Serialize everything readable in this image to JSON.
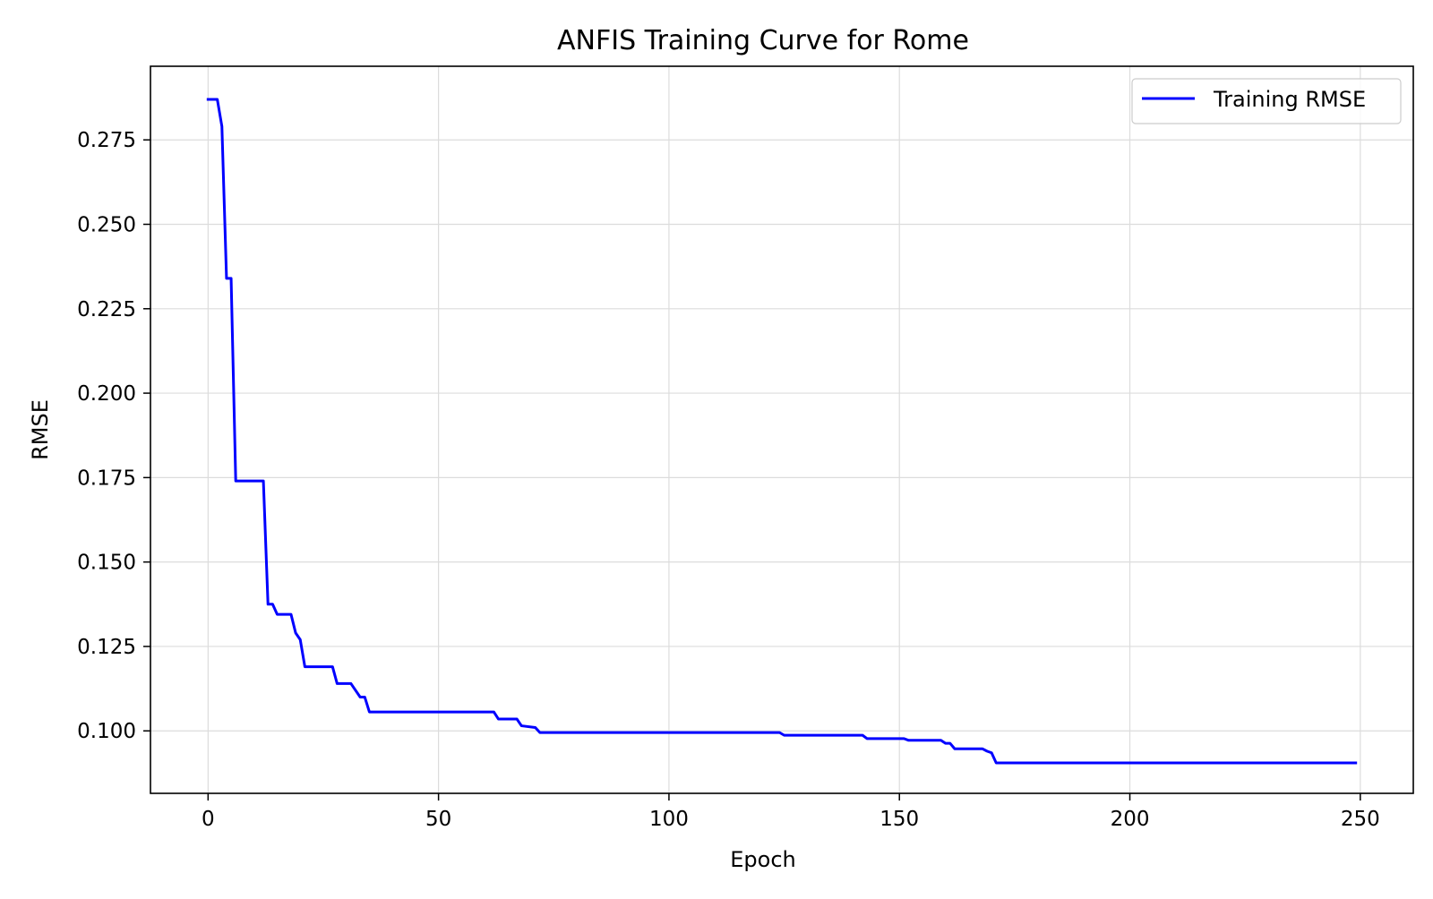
{
  "chart_data": {
    "type": "line",
    "title": "ANFIS Training Curve for Rome",
    "xlabel": "Epoch",
    "ylabel": "RMSE",
    "xlim": [
      -12.5,
      261.5
    ],
    "ylim": [
      0.0815,
      0.2968
    ],
    "x_ticks": [
      0,
      50,
      100,
      150,
      200,
      250
    ],
    "x_tick_labels": [
      "0",
      "50",
      "100",
      "150",
      "200",
      "250"
    ],
    "y_ticks": [
      0.1,
      0.125,
      0.15,
      0.175,
      0.2,
      0.225,
      0.25,
      0.275
    ],
    "y_tick_labels": [
      "0.100",
      "0.125",
      "0.150",
      "0.175",
      "0.200",
      "0.225",
      "0.250",
      "0.275"
    ],
    "grid": true,
    "legend": {
      "position": "top-right",
      "entries": [
        {
          "name": "Training RMSE",
          "color": "#0000ff"
        }
      ]
    },
    "series": [
      {
        "name": "Training RMSE",
        "color": "#0000ff",
        "x": [
          0,
          2,
          3,
          4,
          5,
          6,
          12,
          13,
          14,
          15,
          18,
          19,
          20,
          21,
          27,
          28,
          31,
          33,
          34,
          35,
          62,
          63,
          67,
          68,
          71,
          72,
          124,
          125,
          142,
          143,
          151,
          152,
          159,
          160,
          161,
          162,
          168,
          169,
          170,
          171,
          249
        ],
        "y": [
          0.287,
          0.287,
          0.279,
          0.234,
          0.234,
          0.174,
          0.174,
          0.1375,
          0.1375,
          0.1345,
          0.1345,
          0.129,
          0.127,
          0.119,
          0.119,
          0.114,
          0.114,
          0.11,
          0.11,
          0.1056,
          0.1056,
          0.1035,
          0.1035,
          0.1015,
          0.101,
          0.0995,
          0.0995,
          0.0987,
          0.0987,
          0.0977,
          0.0977,
          0.0972,
          0.0972,
          0.0963,
          0.0963,
          0.0947,
          0.0947,
          0.094,
          0.0935,
          0.0905,
          0.0905
        ]
      }
    ]
  }
}
